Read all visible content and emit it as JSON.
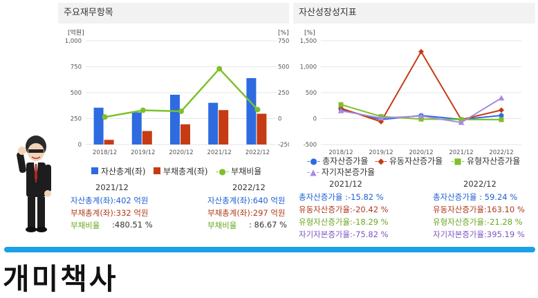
{
  "left_panel": {
    "title": "주요재무항목",
    "y_left_unit": "[억원]",
    "y_right_unit": "[%]",
    "legend": [
      "자산총계(좌)",
      "부채총계(좌)",
      "부채비율"
    ],
    "stats_2021": {
      "year": "2021/12",
      "asset": "자산총계(좌):402 억원",
      "debt": "부채총계(좌):332 억원",
      "ratio_label": "부채비율",
      "ratio_value": ":480.51 %"
    },
    "stats_2022": {
      "year": "2022/12",
      "asset": "자산총계(좌):640 억원",
      "debt": "부채총계(좌):297 억원",
      "ratio_label": "부채비율",
      "ratio_value": ":  86.67 %"
    }
  },
  "right_panel": {
    "title": "자산성장성지표",
    "y_unit": "[%]",
    "legend": [
      "총자산증가율",
      "유동자산증가율",
      "유형자산증가율",
      "자기자본증가율"
    ],
    "stats_2021": {
      "year": "2021/12",
      "total": "총자산증가율    :-15.82 %",
      "current": "유동자산증가율:-20.42 %",
      "tangible": "유형자산증가율:-18.29 %",
      "equity": "자기자본증가율:-75.82 %"
    },
    "stats_2022": {
      "year": "2022/12",
      "total": "총자산증가율    :  59.24 %",
      "current": "유동자산증가율:163.10 %",
      "tangible": "유형자산증가율:-21.28 %",
      "equity": "자기자본증가율:395.19 %"
    }
  },
  "brand": "개미책사",
  "chart_data": [
    {
      "type": "bar",
      "categories": [
        "2018/12",
        "2019/12",
        "2020/12",
        "2021/12",
        "2022/12"
      ],
      "series": [
        {
          "name": "자산총계(좌)",
          "values": [
            355,
            310,
            480,
            402,
            640
          ],
          "color": "#2e6be0"
        },
        {
          "name": "부채총계(좌)",
          "values": [
            45,
            130,
            195,
            332,
            297
          ],
          "color": "#c63b14"
        },
        {
          "name": "부채비율",
          "type": "line",
          "axis": "right",
          "values": [
            15,
            80,
            70,
            480.51,
            86.67
          ],
          "color": "#7dc12a"
        }
      ],
      "ylabel": "[억원]",
      "ylim": [
        0,
        1000
      ],
      "y_ticks": [
        "1,000",
        "750",
        "500",
        "250",
        "0"
      ],
      "y2label": "[%]",
      "y2lim": [
        -250,
        750
      ],
      "y2_ticks": [
        "750",
        "500",
        "250",
        "0",
        "-250"
      ]
    },
    {
      "type": "line",
      "categories": [
        "2018/12",
        "2019/12",
        "2020/12",
        "2021/12",
        "2022/12"
      ],
      "series": [
        {
          "name": "총자산증가율",
          "values": [
            180,
            -20,
            60,
            -15.82,
            59.24
          ],
          "color": "#2e6be0",
          "marker": "circle"
        },
        {
          "name": "유동자산증가율",
          "values": [
            200,
            -60,
            1290,
            -20.42,
            163.1
          ],
          "color": "#c63b14",
          "marker": "diamond"
        },
        {
          "name": "유형자산증가율",
          "values": [
            270,
            40,
            -10,
            -18.29,
            -21.28
          ],
          "color": "#7dc12a",
          "marker": "square"
        },
        {
          "name": "자기자본증가율",
          "values": [
            150,
            10,
            50,
            -75.82,
            395.19
          ],
          "color": "#a98be0",
          "marker": "triangle"
        }
      ],
      "ylabel": "[%]",
      "ylim": [
        -500,
        1500
      ],
      "y_ticks": [
        "1,500",
        "1,000",
        "500",
        "0",
        "-500"
      ]
    }
  ]
}
